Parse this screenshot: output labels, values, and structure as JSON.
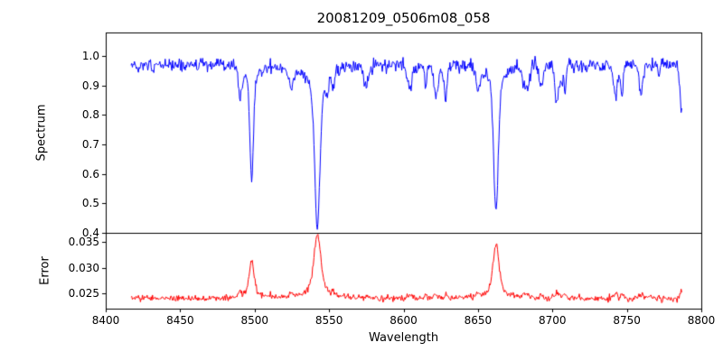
{
  "title": "20081209_0506m08_058",
  "axes": {
    "xlabel": "Wavelength",
    "xlim": [
      8400,
      8800
    ],
    "xticks": [
      8400,
      8450,
      8500,
      8550,
      8600,
      8650,
      8700,
      8750,
      8800
    ],
    "xticklabels": [
      "8400",
      "8450",
      "8500",
      "8550",
      "8600",
      "8650",
      "8700",
      "8750",
      "8800"
    ]
  },
  "chart_data": [
    {
      "type": "line",
      "name": "spectrum",
      "ylabel": "Spectrum",
      "color": "#0000ff",
      "ylim": [
        0.4,
        1.08
      ],
      "yticks": [
        0.4,
        0.5,
        0.6,
        0.7,
        0.8,
        0.9,
        1.0
      ],
      "yticklabels": [
        "0.4",
        "0.5",
        "0.6",
        "0.7",
        "0.8",
        "0.9",
        "1.0"
      ],
      "x_range": [
        8417,
        8787
      ],
      "continuum": 0.97,
      "noise_sigma": 0.011,
      "absorption_lines": [
        {
          "center": 8498.0,
          "depth": 0.38,
          "core_width": 1.2,
          "wing_width": 3.5
        },
        {
          "center": 8542.1,
          "depth": 0.545,
          "core_width": 1.7,
          "wing_width": 7.0
        },
        {
          "center": 8662.1,
          "depth": 0.49,
          "core_width": 1.5,
          "wing_width": 5.0
        }
      ],
      "weak_lines": {
        "count": 30,
        "depth_range": [
          0.02,
          0.1
        ],
        "width_range": [
          0.5,
          1.6
        ],
        "seed": 20081209
      }
    },
    {
      "type": "line",
      "name": "error",
      "ylabel": "Error",
      "color": "#ff0000",
      "ylim": [
        0.022,
        0.0368
      ],
      "yticks": [
        0.025,
        0.03,
        0.035
      ],
      "yticklabels": [
        "0.025",
        "0.030",
        "0.035"
      ],
      "baseline": 0.024,
      "noise_sigma": 0.0003,
      "peaks": [
        {
          "center": 8498.0,
          "height": 0.0075,
          "width": 1.5
        },
        {
          "center": 8542.1,
          "height": 0.0122,
          "width": 2.2
        },
        {
          "center": 8662.1,
          "height": 0.0105,
          "width": 1.9
        }
      ]
    }
  ],
  "colors": {
    "frame": "#000000",
    "background": "#ffffff"
  }
}
